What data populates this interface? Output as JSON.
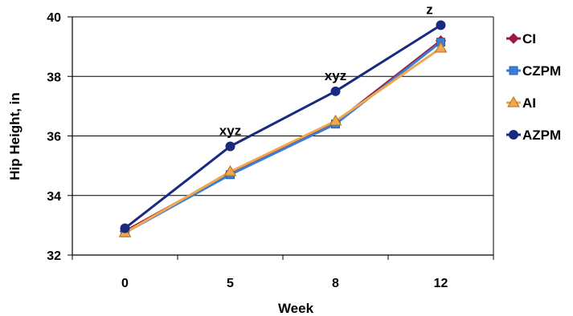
{
  "chart_data": {
    "type": "line",
    "xlabel": "Week",
    "ylabel": "Hip Height, in",
    "categories": [
      "0",
      "5",
      "8",
      "12"
    ],
    "ylim": [
      32,
      40
    ],
    "yticks": [
      "32",
      "34",
      "36",
      "38",
      "40"
    ],
    "grid": "horizontal",
    "legend": "right",
    "series": [
      {
        "name": "CI",
        "color": "#9b1b3a",
        "marker": "diamond",
        "values": [
          32.8,
          34.75,
          36.45,
          39.2
        ]
      },
      {
        "name": "CZPM",
        "color": "#3a7fd5",
        "marker": "square",
        "values": [
          32.75,
          34.7,
          36.4,
          39.15
        ]
      },
      {
        "name": "AI",
        "color": "#f0a850",
        "marker": "triangle",
        "values": [
          32.75,
          34.8,
          36.5,
          38.95
        ]
      },
      {
        "name": "AZPM",
        "color": "#1a2a80",
        "marker": "circle",
        "values": [
          32.9,
          35.65,
          37.5,
          39.72
        ]
      }
    ],
    "annotations": [
      {
        "text": "xyz",
        "category": "5"
      },
      {
        "text": "xyz",
        "category": "8"
      },
      {
        "text": "z",
        "category": "12"
      }
    ]
  }
}
